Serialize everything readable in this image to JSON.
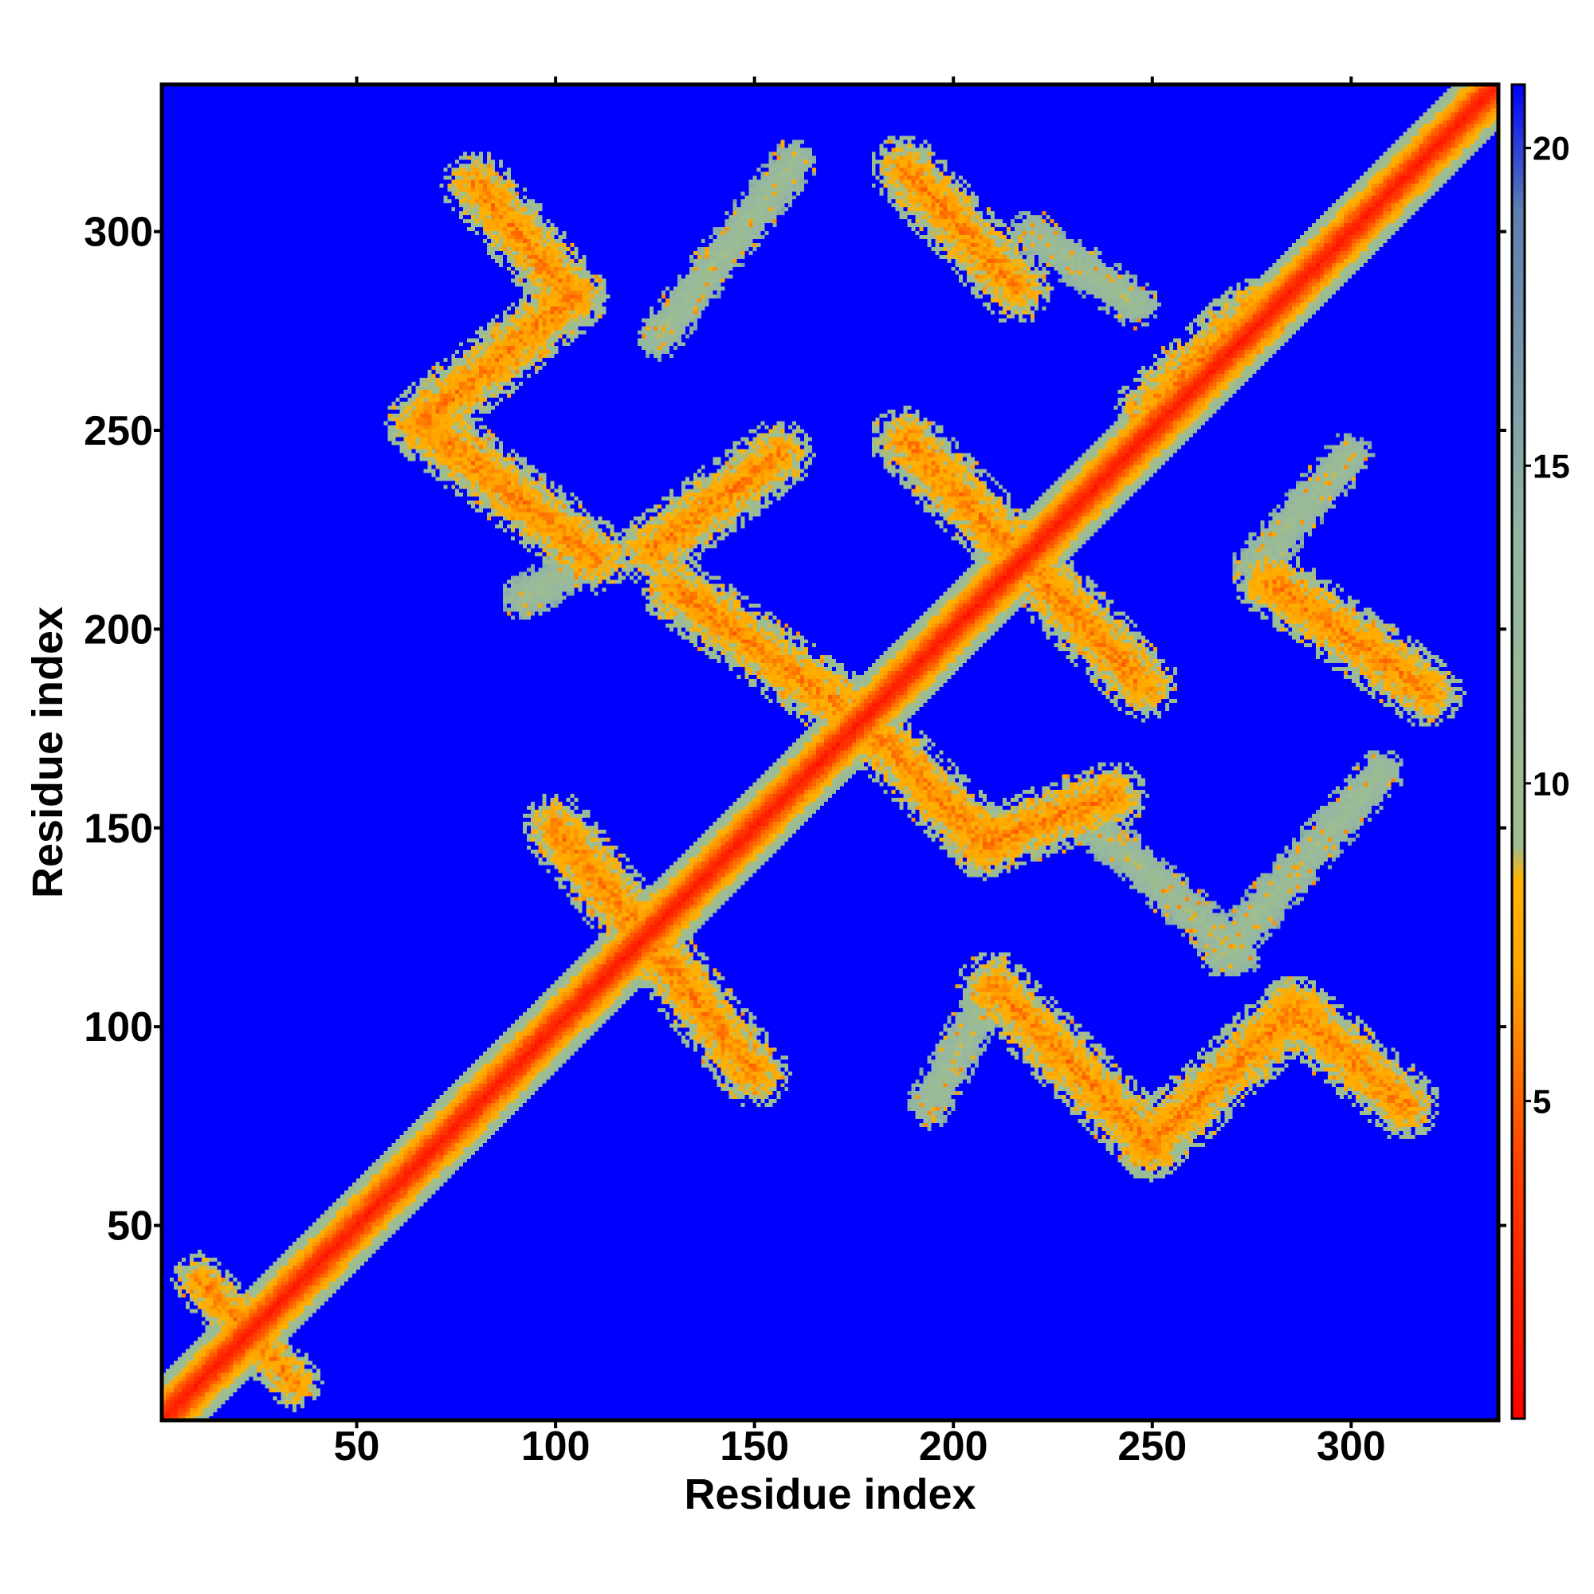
{
  "chart_data": {
    "type": "heatmap",
    "title": "",
    "xlabel": "Residue index",
    "ylabel": "Residue index",
    "xlim": [
      1,
      337
    ],
    "ylim": [
      1,
      337
    ],
    "x_ticks": [
      50,
      100,
      150,
      200,
      250,
      300
    ],
    "y_ticks": [
      50,
      100,
      150,
      200,
      250,
      300
    ],
    "grid": false,
    "legend": "colorbar-right",
    "colorbar": {
      "range": [
        0,
        21
      ],
      "ticks": [
        5,
        10,
        15,
        20
      ],
      "stops": [
        {
          "value": 0,
          "color": "#ff0000"
        },
        {
          "value": 4,
          "color": "#ff4000"
        },
        {
          "value": 7,
          "color": "#ffa500"
        },
        {
          "value": 8.5,
          "color": "#ffb300"
        },
        {
          "value": 9,
          "color": "#9fbe8f"
        },
        {
          "value": 14,
          "color": "#93b5a3"
        },
        {
          "value": 19,
          "color": "#5e7fb0"
        },
        {
          "value": 21,
          "color": "#0000ff"
        }
      ]
    },
    "background_value": 21,
    "diagonal": {
      "center_value": 1,
      "band_halfwidth": 11
    },
    "contact_bands": [
      {
        "from": [
          80,
          312
        ],
        "to": [
          104,
          284
        ],
        "width": 9,
        "value": 11
      },
      {
        "from": [
          104,
          284
        ],
        "to": [
          66,
          252
        ],
        "width": 9,
        "value": 11
      },
      {
        "from": [
          66,
          252
        ],
        "to": [
          110,
          218
        ],
        "width": 9,
        "value": 11
      },
      {
        "from": [
          92,
          208
        ],
        "to": [
          108,
          218
        ],
        "width": 6,
        "value": 15
      },
      {
        "from": [
          124,
          220
        ],
        "to": [
          156,
          244
        ],
        "width": 9,
        "value": 11
      },
      {
        "from": [
          130,
          210
        ],
        "to": [
          178,
          176
        ],
        "width": 9,
        "value": 11
      },
      {
        "from": [
          178,
          176
        ],
        "to": [
          208,
          146
        ],
        "width": 9,
        "value": 11
      },
      {
        "from": [
          208,
          146
        ],
        "to": [
          240,
          158
        ],
        "width": 9,
        "value": 11
      },
      {
        "from": [
          210,
          110
        ],
        "to": [
          250,
          70
        ],
        "width": 9,
        "value": 11
      },
      {
        "from": [
          250,
          70
        ],
        "to": [
          286,
          104
        ],
        "width": 9,
        "value": 11
      },
      {
        "from": [
          286,
          104
        ],
        "to": [
          314,
          80
        ],
        "width": 9,
        "value": 11
      },
      {
        "from": [
          194,
          80
        ],
        "to": [
          210,
          110
        ],
        "width": 6,
        "value": 15
      },
      {
        "from": [
          100,
          150
        ],
        "to": [
          150,
          88
        ],
        "width": 9,
        "value": 11
      },
      {
        "from": [
          188,
          316
        ],
        "to": [
          216,
          286
        ],
        "width": 9,
        "value": 11
      },
      {
        "from": [
          188,
          248
        ],
        "to": [
          248,
          186
        ],
        "width": 9,
        "value": 11
      },
      {
        "from": [
          250,
          256
        ],
        "to": [
          276,
          280
        ],
        "width": 9,
        "value": 11
      },
      {
        "from": [
          280,
          212
        ],
        "to": [
          320,
          184
        ],
        "width": 9,
        "value": 11
      },
      {
        "from": [
          10,
          36
        ],
        "to": [
          34,
          10
        ],
        "width": 7,
        "value": 11
      },
      {
        "from": [
          220,
          300
        ],
        "to": [
          246,
          282
        ],
        "width": 6,
        "value": 15
      },
      {
        "from": [
          126,
          274
        ],
        "to": [
          160,
          318
        ],
        "width": 6,
        "value": 15
      },
      {
        "from": [
          276,
          216
        ],
        "to": [
          300,
          244
        ],
        "width": 6,
        "value": 15
      },
      {
        "from": [
          268,
          118
        ],
        "to": [
          308,
          164
        ],
        "width": 6,
        "value": 15
      },
      {
        "from": [
          236,
          150
        ],
        "to": [
          272,
          118
        ],
        "width": 6,
        "value": 15
      }
    ]
  }
}
